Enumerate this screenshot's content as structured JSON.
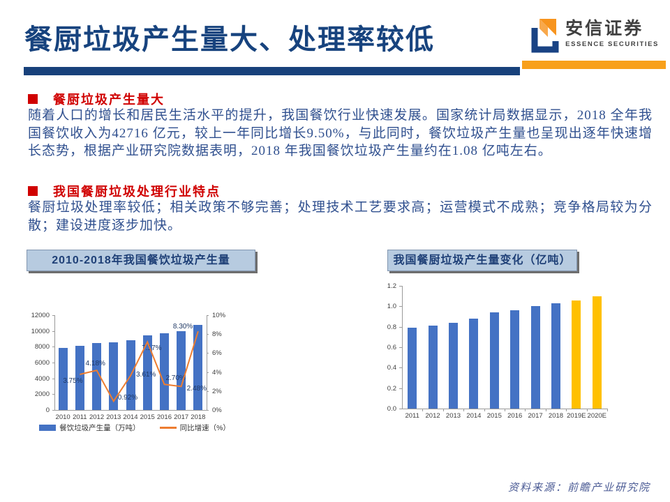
{
  "header": {
    "title": "餐厨垃圾产生量大、处理率较低",
    "logo": {
      "cn": "安信证券",
      "en": "ESSENCE SECURITIES"
    }
  },
  "body": {
    "sections": [
      {
        "heading": "餐厨垃圾产生量大",
        "text": "随着人口的增长和居民生活水平的提升，我国餐饮行业快速发展。国家统计局数据显示，2018 全年我国餐饮收入为42716 亿元，较上一年同比增长9.50%，与此同时，餐饮垃圾产生量也呈现出逐年快速增长态势，根据产业研究院数据表明，2018 年我国餐饮垃圾产生量约在1.08 亿吨左右。"
      },
      {
        "heading": "我国餐厨垃圾处理行业特点",
        "text": "餐厨垃圾处理率较低；相关政策不够完善；处理技术工艺要求高；运营模式不成熟；竞争格局较为分散；建设进度逐步加快。"
      }
    ]
  },
  "footer": {
    "source": "资料来源：前瞻产业研究院"
  },
  "colors": {
    "title_navy": "#17437E",
    "rule_navy": "#18417B",
    "rule_orange": "#F8A01B",
    "accent_red": "#D00000",
    "body_blue": "#30508F",
    "bar_blue": "#4472C4",
    "line_orange": "#ED7D31",
    "forecast_gold": "#FFC000"
  },
  "chart_data": [
    {
      "type": "bar+line",
      "title": "2010-2018年我国餐饮垃圾产生量",
      "categories": [
        "2010",
        "2011",
        "2012",
        "2013",
        "2014",
        "2015",
        "2016",
        "2017",
        "2018"
      ],
      "series": [
        {
          "name": "餐饮垃圾产生量（万吨）",
          "type": "bar",
          "color": "#4472C4",
          "values": [
            7820,
            8110,
            8450,
            8530,
            8840,
            9470,
            9730,
            9970,
            10800
          ]
        },
        {
          "name": "同比增速（%）",
          "type": "line",
          "color": "#ED7D31",
          "axis": "right",
          "values": [
            null,
            3.75,
            4.18,
            0.92,
            3.61,
            7.17,
            2.7,
            2.48,
            8.3
          ],
          "labels": [
            "",
            "3.75%",
            "4.18%",
            "0.92%",
            "3.61%",
            "7.17%",
            "2.70%",
            "2.48%",
            "8.30%"
          ],
          "label_offsets": [
            [
              0,
              0
            ],
            [
              -24,
              4
            ],
            [
              -16,
              -15
            ],
            [
              6,
              -10
            ],
            [
              8,
              -7
            ],
            [
              -8,
              4
            ],
            [
              2,
              -14
            ],
            [
              8,
              -2
            ],
            [
              -36,
              -12
            ]
          ]
        }
      ],
      "left_axis": {
        "min": 0,
        "max": 12000,
        "step": 2000,
        "suffix": ""
      },
      "right_axis": {
        "min": 0,
        "max": 10,
        "step": 2,
        "suffix": "%"
      },
      "legend_position": "bottom",
      "grid": false
    },
    {
      "type": "bar",
      "title": "我国餐厨垃圾产生量变化（亿吨）",
      "categories": [
        "2011",
        "2012",
        "2013",
        "2014",
        "2015",
        "2016",
        "2017",
        "2018",
        "2019E",
        "2020E"
      ],
      "values": [
        0.79,
        0.81,
        0.84,
        0.88,
        0.94,
        0.96,
        1.0,
        1.03,
        1.06,
        1.1
      ],
      "point_colors": [
        "#4472C4",
        "#4472C4",
        "#4472C4",
        "#4472C4",
        "#4472C4",
        "#4472C4",
        "#4472C4",
        "#4472C4",
        "#FFC000",
        "#FFC000"
      ],
      "y_axis": {
        "min": 0.0,
        "max": 1.2,
        "step": 0.2,
        "decimals": 1
      },
      "grid": false
    }
  ]
}
